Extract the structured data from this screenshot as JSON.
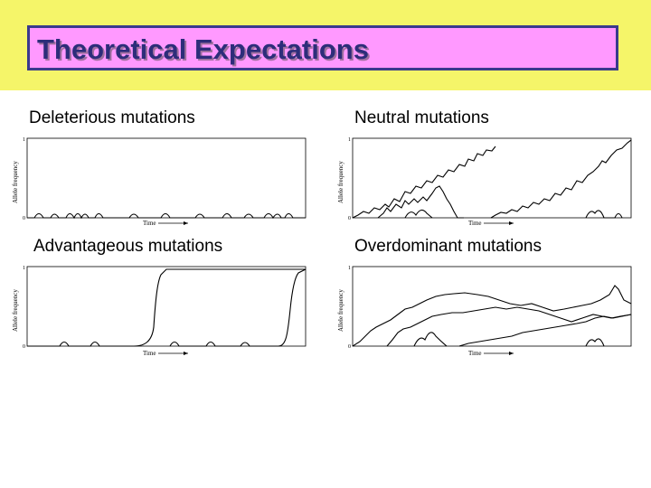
{
  "title": "Theoretical Expectations",
  "panels": [
    {
      "label": "Deleterious mutations",
      "y_axis": "Allele frequency",
      "x_axis": "Time",
      "y_top_tick": "1",
      "y_bottom_tick": "0"
    },
    {
      "label": "Neutral mutations",
      "y_axis": "Allele frequency",
      "x_axis": "Time",
      "y_top_tick": "1",
      "y_bottom_tick": "0"
    },
    {
      "label": "Advantageous mutations",
      "y_axis": "Allele frequency",
      "x_axis": "Time",
      "y_top_tick": "1",
      "y_bottom_tick": "0"
    },
    {
      "label": "Overdominant mutations",
      "y_axis": "Allele frequency",
      "x_axis": "Time",
      "y_top_tick": "1",
      "y_bottom_tick": "0"
    }
  ],
  "colors": {
    "band": "#f5f569",
    "title_box": "#ff99ff",
    "title_text": "#2d2d7a",
    "title_border": "#3a3a8c"
  }
}
